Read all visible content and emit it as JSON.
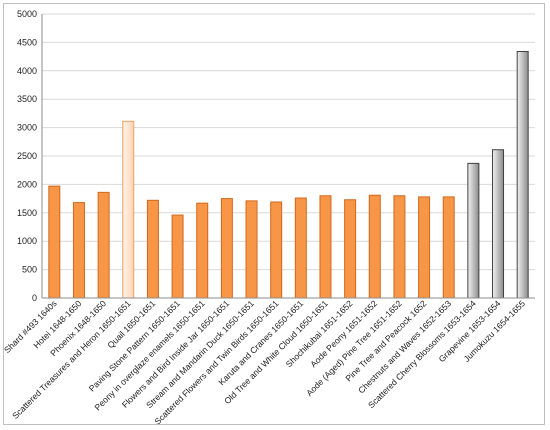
{
  "chart_data": {
    "type": "bar",
    "title": "",
    "xlabel": "",
    "ylabel": "",
    "ylim": [
      0,
      5000
    ],
    "yticks": [
      0,
      500,
      1000,
      1500,
      2000,
      2500,
      3000,
      3500,
      4000,
      4500,
      5000
    ],
    "grid": true,
    "legend": "none",
    "categories": [
      "Shard #493 1640s",
      "Hotei 1648-1650",
      "Phoenix 1648-1650",
      "Scattered Treasures and Heron 1650-1651",
      "Quail 1650-1651",
      "Paving Stone Pattern 1650-1651",
      "Peony in overglaze enamels 1650-1651",
      "Flowers and Bird Inside Jar 1650-1651",
      "Stream and Mandarin Duck 1650-1651",
      "Scattered Flowers and Twin Birds 1650-1651",
      "Karuta and Cranes 1650-1651",
      "Old Tree and White Cloud 1650-1651",
      "Shochikubai 1651-1652",
      "Aode Peony 1651-1652",
      "Aode (Aged) Pine Tree 1651-1652",
      "Pine Tree and Peacock 1652",
      "Chestnuts and Waves 1652-1653",
      "Scattered Cherry Blossoms 1653-1654",
      "Grapevine 1653-1654",
      "Jumokuzu 1654-1655"
    ],
    "values": [
      1970,
      1680,
      1860,
      3110,
      1720,
      1460,
      1670,
      1750,
      1710,
      1690,
      1760,
      1800,
      1730,
      1810,
      1800,
      1780,
      1780,
      2370,
      2610,
      4340
    ],
    "bar_styles": [
      "orange",
      "orange",
      "orange",
      "light-orange",
      "orange",
      "orange",
      "orange",
      "orange",
      "orange",
      "orange",
      "orange",
      "orange",
      "orange",
      "orange",
      "orange",
      "orange",
      "orange",
      "gray",
      "gray",
      "gray"
    ],
    "colors": {
      "orange_fill": "#f79646",
      "orange_edge": "#d2691e",
      "light_orange_fill": "#fde9d9",
      "light_orange_edge": "#f0a060",
      "gray_dark": "#8c8c8c",
      "gray_light": "#f2f2f2",
      "gray_edge": "#404040",
      "grid": "#d9d9d9"
    }
  }
}
